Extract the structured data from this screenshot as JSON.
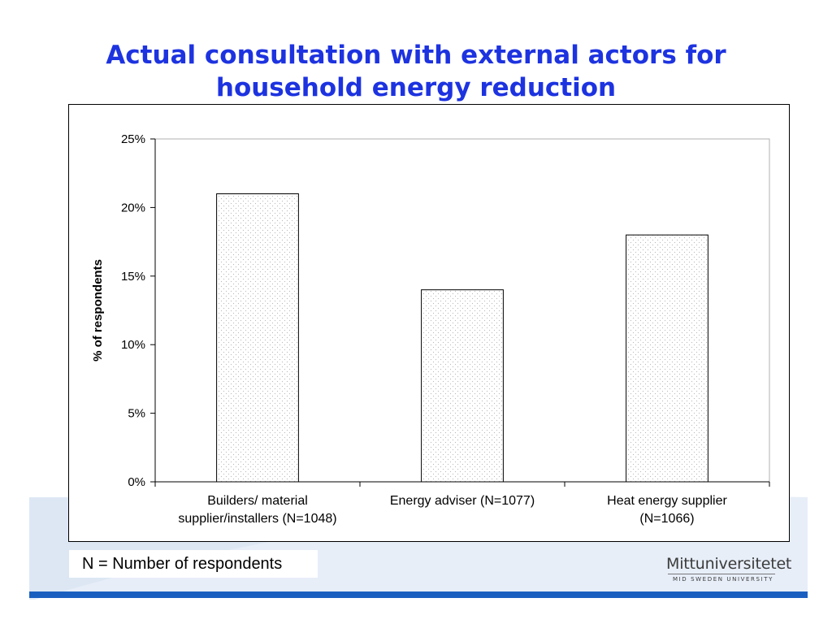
{
  "slide": {
    "title": "Actual consultation with external actors for household energy reduction",
    "note": "N = Number of respondents"
  },
  "logo": {
    "name": "Mittuniversitetet",
    "subtitle": "MID SWEDEN UNIVERSITY"
  },
  "colors": {
    "title": "#1d33e0",
    "accent_yellow": "#f6c31a",
    "accent_blue": "#1a5fc0",
    "accent_light_blue": "#c9d9ee",
    "bar_fill": "#ffffff",
    "bar_dots": "#b9b9b9"
  },
  "chart_data": {
    "type": "bar",
    "title": "",
    "xlabel": "",
    "ylabel": "% of respondents",
    "categories": [
      [
        "Builders/ material",
        "supplier/installers (N=1048)"
      ],
      [
        "Energy adviser (N=1077)"
      ],
      [
        "Heat energy supplier",
        "(N=1066)"
      ]
    ],
    "values": [
      21,
      14,
      18
    ],
    "ylim": [
      0,
      25
    ],
    "yticks": [
      0,
      5,
      10,
      15,
      20,
      25
    ],
    "ytick_labels": [
      "0%",
      "5%",
      "10%",
      "15%",
      "20%",
      "25%"
    ],
    "grid": false,
    "legend": "none",
    "bar_pattern": "dotted"
  }
}
